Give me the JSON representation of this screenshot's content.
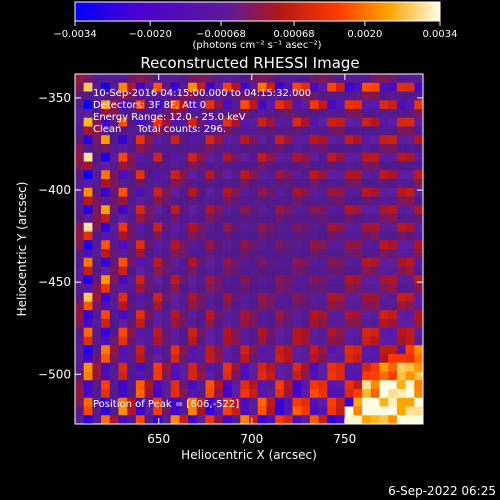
{
  "chart_data": {
    "type": "heatmap",
    "title": "Reconstructed RHESSI Image",
    "xlabel": "Heliocentric X (arcsec)",
    "ylabel": "Heliocentric Y (arcsec)",
    "xlim": [
      605,
      792
    ],
    "ylim": [
      -527,
      -337
    ],
    "x_ticks": [
      650,
      700,
      750
    ],
    "x_tick_labels": [
      "650",
      "700",
      "750"
    ],
    "y_ticks": [
      -350,
      -400,
      -450,
      -500
    ],
    "y_tick_labels": [
      "−350",
      "−400",
      "−450",
      "−500"
    ],
    "colorbar": {
      "range": [
        -0.0034,
        0.0034
      ],
      "ticks": [
        -0.0034,
        -0.002,
        -0.00068,
        0.00068,
        0.002,
        0.0034
      ],
      "tick_labels": [
        "−0.0034",
        "−0.0020",
        "−0.00068",
        "0.00068",
        "0.0020",
        "0.0034"
      ],
      "units_label": "(photons cm⁻² s⁻¹ asec⁻²)",
      "colors": [
        "#0000ff",
        "#5a00c8",
        "#6a1fa0",
        "#c01818",
        "#ff5000",
        "#ffb000",
        "#ffffe0"
      ]
    },
    "annotations": {
      "time_range": "10-Sep-2016 04:15:00.000 to 04:15:32.000",
      "detectors": "Detectors: 3F 8F, Att 0",
      "energy_range": "Energy Range: 12.0 - 25.0 keV",
      "clean_counts": "Clean     Total counts: 296.",
      "peak": "Position of Peak = [606,-522]"
    },
    "peak_position": [
      606,
      -522
    ]
  },
  "footer_timestamp": "6-Sep-2022 06:25"
}
